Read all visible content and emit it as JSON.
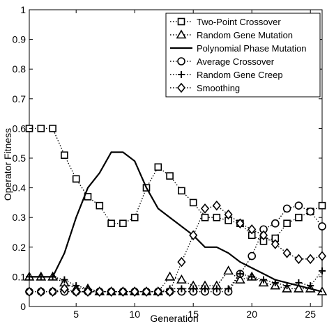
{
  "chart_data": {
    "type": "line",
    "xlabel": "Generation",
    "ylabel": "Operator Fitness",
    "xlim": [
      1,
      26
    ],
    "ylim": [
      0,
      1
    ],
    "xticks": [
      5,
      10,
      15,
      20,
      25
    ],
    "yticks": [
      0,
      0.1,
      0.2,
      0.3,
      0.4,
      0.5,
      0.6,
      0.7,
      0.8,
      0.9,
      1
    ],
    "ytick_labels": [
      "0",
      "0.1",
      "0.2",
      "0.3",
      "0.4",
      "0.5",
      "0.6",
      "0.7",
      "0.8",
      "0.9",
      "1"
    ],
    "legend_position": "top-right",
    "grid": false,
    "x": [
      1,
      2,
      3,
      4,
      5,
      6,
      7,
      8,
      9,
      10,
      11,
      12,
      13,
      14,
      15,
      16,
      17,
      18,
      19,
      20,
      21,
      22,
      23,
      24,
      25,
      26
    ],
    "series": [
      {
        "name": "Two-Point Crossover",
        "marker": "square",
        "line": "dotted",
        "values": [
          0.6,
          0.6,
          0.6,
          0.51,
          0.43,
          0.37,
          0.34,
          0.28,
          0.28,
          0.3,
          0.4,
          0.47,
          0.44,
          0.39,
          0.35,
          0.3,
          0.3,
          0.29,
          0.28,
          0.24,
          0.22,
          0.23,
          0.28,
          0.3,
          0.32,
          0.34
        ]
      },
      {
        "name": "Random Gene Mutation",
        "marker": "triangle",
        "line": "dotted",
        "values": [
          0.1,
          0.1,
          0.1,
          0.08,
          0.06,
          0.06,
          0.05,
          0.05,
          0.05,
          0.05,
          0.05,
          0.05,
          0.1,
          0.09,
          0.07,
          0.07,
          0.07,
          0.12,
          0.09,
          0.1,
          0.08,
          0.07,
          0.06,
          0.06,
          0.06,
          0.05
        ]
      },
      {
        "name": "Polynomial Phase Mutation",
        "marker": "none",
        "line": "solid",
        "values": [
          0.1,
          0.1,
          0.1,
          0.18,
          0.3,
          0.4,
          0.45,
          0.52,
          0.52,
          0.49,
          0.4,
          0.33,
          0.3,
          0.27,
          0.24,
          0.2,
          0.2,
          0.18,
          0.15,
          0.13,
          0.11,
          0.09,
          0.08,
          0.07,
          0.06,
          0.05
        ]
      },
      {
        "name": "Average Crossover",
        "marker": "circle",
        "line": "dotted",
        "values": [
          0.05,
          0.05,
          0.05,
          0.05,
          0.05,
          0.05,
          0.05,
          0.05,
          0.05,
          0.05,
          0.05,
          0.05,
          0.05,
          0.05,
          0.05,
          0.05,
          0.05,
          0.05,
          0.11,
          0.17,
          0.26,
          0.28,
          0.33,
          0.34,
          0.32,
          0.27
        ]
      },
      {
        "name": "Random Gene Creep",
        "marker": "plus",
        "line": "dotted",
        "values": [
          0.1,
          0.1,
          0.1,
          0.09,
          0.07,
          0.06,
          0.05,
          0.05,
          0.05,
          0.05,
          0.05,
          0.05,
          0.06,
          0.06,
          0.06,
          0.06,
          0.06,
          0.06,
          0.11,
          0.1,
          0.09,
          0.08,
          0.07,
          0.08,
          0.07,
          0.12
        ]
      },
      {
        "name": "Smoothing",
        "marker": "diamond",
        "line": "dotted",
        "values": [
          0.05,
          0.05,
          0.05,
          0.06,
          0.05,
          0.05,
          0.05,
          0.05,
          0.05,
          0.05,
          0.05,
          0.05,
          0.05,
          0.15,
          0.24,
          0.33,
          0.34,
          0.31,
          0.28,
          0.26,
          0.24,
          0.21,
          0.18,
          0.16,
          0.16,
          0.17
        ]
      }
    ]
  }
}
